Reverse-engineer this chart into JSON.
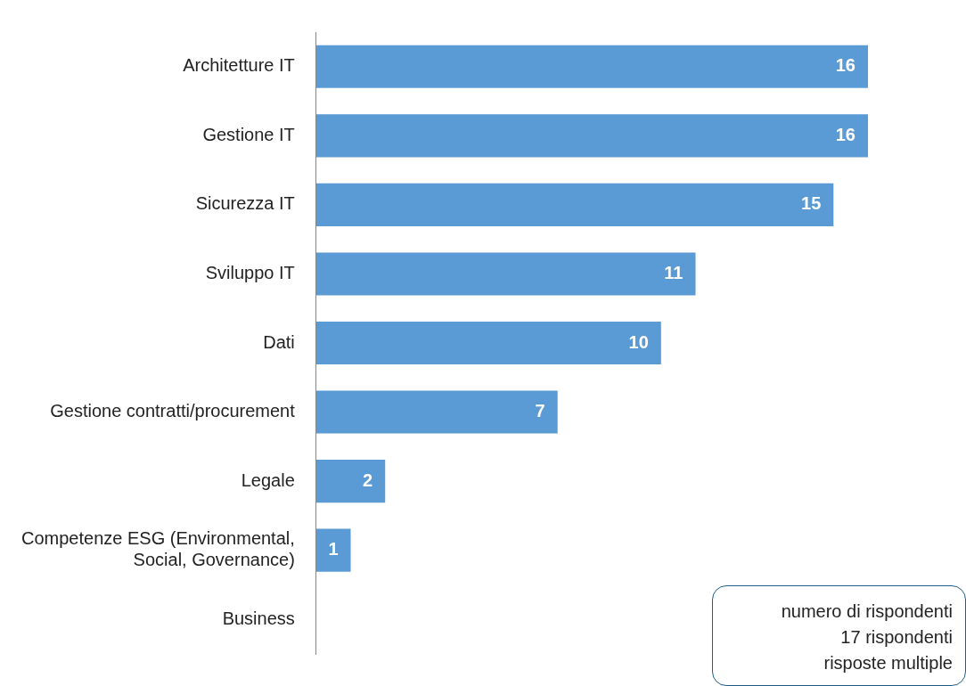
{
  "chart_data": {
    "type": "bar",
    "orientation": "horizontal",
    "categories": [
      "Architetture IT",
      "Gestione IT",
      "Sicurezza IT",
      "Sviluppo IT",
      "Dati",
      "Gestione contratti/procurement",
      "Legale",
      "Competenze ESG (Environmental, Social, Governance)",
      "Business"
    ],
    "values": [
      16,
      16,
      15,
      11,
      10,
      7,
      2,
      1,
      0
    ],
    "value_labels": [
      "16",
      "16",
      "15",
      "11",
      "10",
      "7",
      "2",
      "1",
      null
    ],
    "color": "#5b9bd5",
    "legend": false,
    "annotations": [
      "numero di rispondenti",
      "17 rispondenti",
      "risposte multiple"
    ]
  }
}
